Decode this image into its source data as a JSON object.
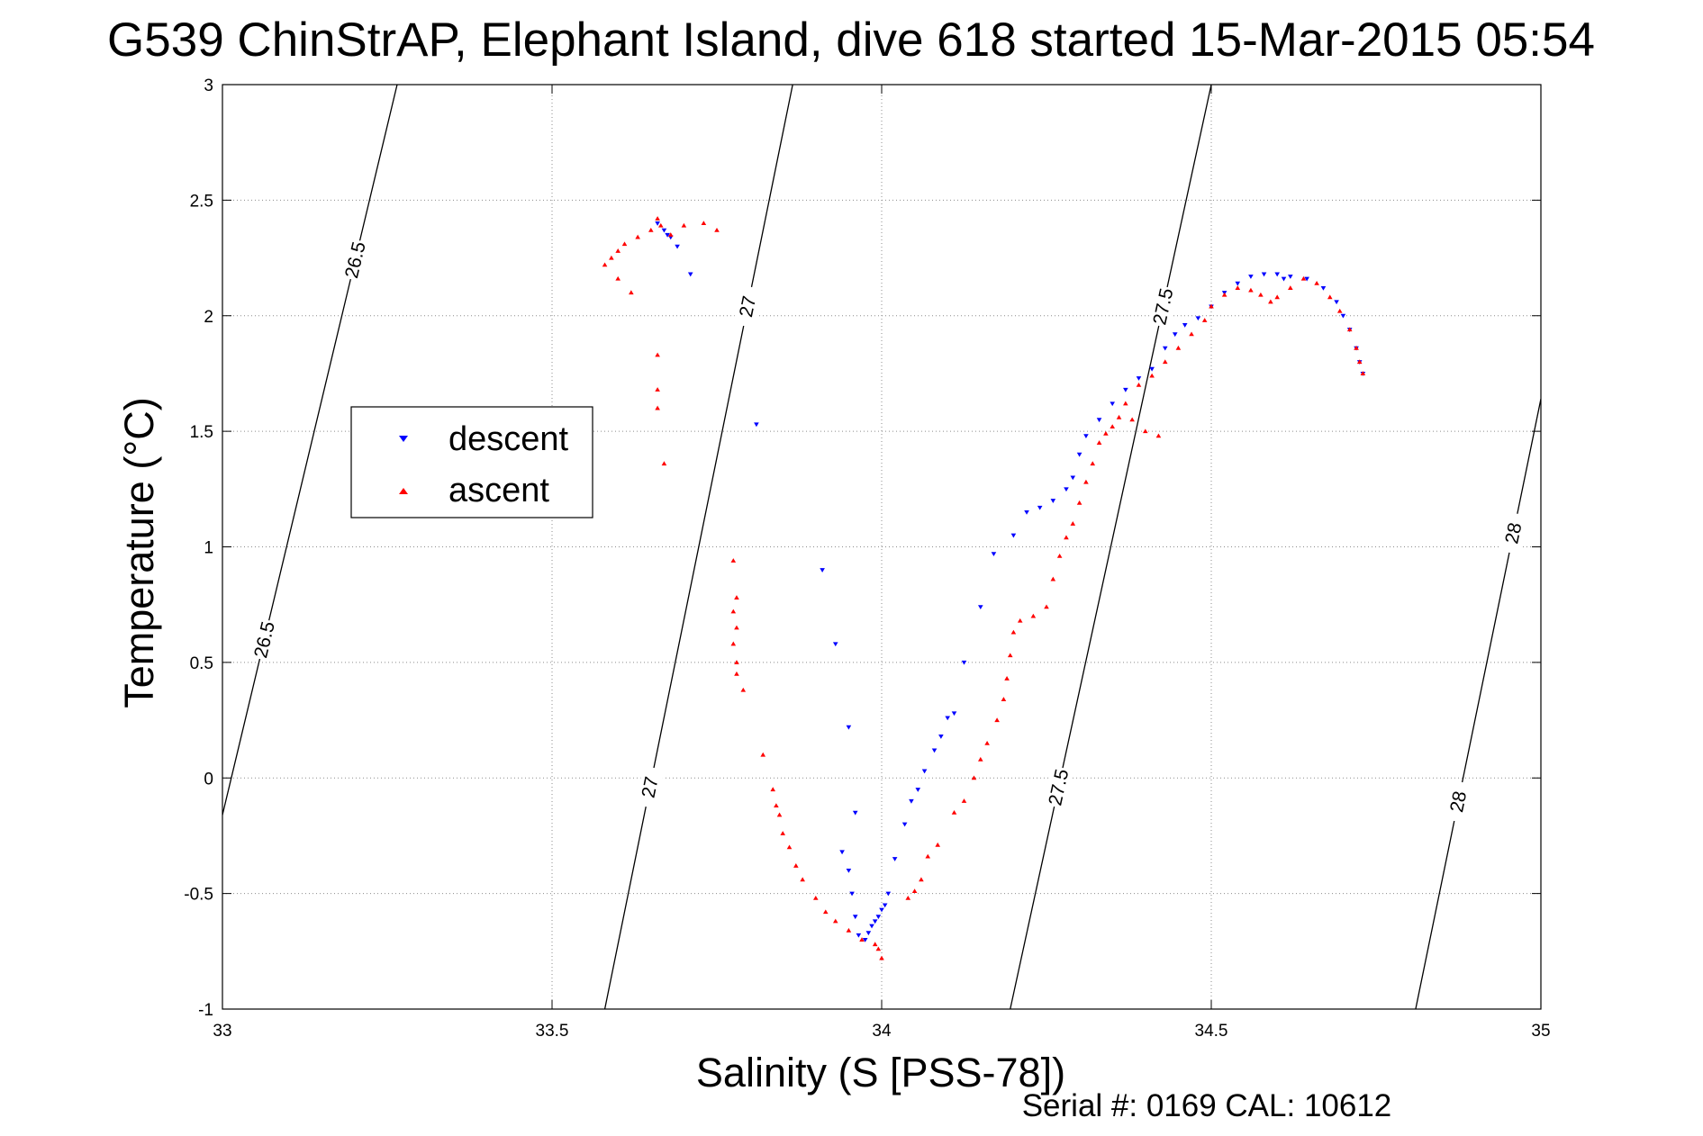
{
  "chart_data": {
    "type": "scatter",
    "title": "G539 ChinStrAP, Elephant Island, dive 618 started 15-Mar-2015 05:54",
    "xlabel": "Salinity (S [PSS-78])",
    "ylabel": "Temperature (°C)",
    "xlim": [
      33,
      35
    ],
    "ylim": [
      -1,
      3
    ],
    "xticks": [
      "33",
      "33.5",
      "34",
      "34.5",
      "35"
    ],
    "yticks": [
      "-1",
      "-0.5",
      "0",
      "0.5",
      "1",
      "1.5",
      "2",
      "2.5",
      "3"
    ],
    "grid": true,
    "legend_position": "middle-left",
    "footer": "Serial #: 0169 CAL: 10612",
    "series": [
      {
        "name": "descent",
        "color": "#0000ff",
        "marker": "triangle-down",
        "points": [
          [
            33.66,
            2.4
          ],
          [
            33.67,
            2.37
          ],
          [
            33.675,
            2.35
          ],
          [
            33.68,
            2.34
          ],
          [
            33.69,
            2.3
          ],
          [
            33.71,
            2.18
          ],
          [
            33.81,
            1.53
          ],
          [
            33.91,
            0.9
          ],
          [
            33.93,
            0.58
          ],
          [
            33.95,
            0.22
          ],
          [
            33.96,
            -0.15
          ],
          [
            33.94,
            -0.32
          ],
          [
            33.95,
            -0.4
          ],
          [
            33.955,
            -0.5
          ],
          [
            33.96,
            -0.6
          ],
          [
            33.965,
            -0.68
          ],
          [
            33.975,
            -0.7
          ],
          [
            33.98,
            -0.67
          ],
          [
            33.985,
            -0.64
          ],
          [
            33.99,
            -0.62
          ],
          [
            33.995,
            -0.6
          ],
          [
            34.0,
            -0.57
          ],
          [
            34.005,
            -0.55
          ],
          [
            34.01,
            -0.5
          ],
          [
            34.02,
            -0.35
          ],
          [
            34.035,
            -0.2
          ],
          [
            34.045,
            -0.1
          ],
          [
            34.055,
            -0.05
          ],
          [
            34.065,
            0.03
          ],
          [
            34.08,
            0.12
          ],
          [
            34.09,
            0.18
          ],
          [
            34.1,
            0.26
          ],
          [
            34.11,
            0.28
          ],
          [
            34.125,
            0.5
          ],
          [
            34.15,
            0.74
          ],
          [
            34.17,
            0.97
          ],
          [
            34.2,
            1.05
          ],
          [
            34.22,
            1.15
          ],
          [
            34.24,
            1.17
          ],
          [
            34.26,
            1.2
          ],
          [
            34.28,
            1.25
          ],
          [
            34.29,
            1.3
          ],
          [
            34.3,
            1.4
          ],
          [
            34.31,
            1.48
          ],
          [
            34.33,
            1.55
          ],
          [
            34.35,
            1.62
          ],
          [
            34.37,
            1.68
          ],
          [
            34.39,
            1.73
          ],
          [
            34.41,
            1.77
          ],
          [
            34.43,
            1.86
          ],
          [
            34.445,
            1.92
          ],
          [
            34.46,
            1.96
          ],
          [
            34.48,
            1.99
          ],
          [
            34.5,
            2.04
          ],
          [
            34.52,
            2.1
          ],
          [
            34.54,
            2.14
          ],
          [
            34.56,
            2.17
          ],
          [
            34.58,
            2.18
          ],
          [
            34.6,
            2.18
          ],
          [
            34.61,
            2.16
          ],
          [
            34.62,
            2.17
          ],
          [
            34.645,
            2.16
          ],
          [
            34.67,
            2.12
          ],
          [
            34.69,
            2.06
          ],
          [
            34.7,
            2.0
          ],
          [
            34.71,
            1.94
          ],
          [
            34.72,
            1.86
          ],
          [
            34.725,
            1.8
          ],
          [
            34.73,
            1.75
          ]
        ]
      },
      {
        "name": "ascent",
        "color": "#ff0000",
        "marker": "triangle-up",
        "points": [
          [
            33.66,
            2.42
          ],
          [
            33.665,
            2.39
          ],
          [
            33.65,
            2.37
          ],
          [
            33.63,
            2.34
          ],
          [
            33.61,
            2.31
          ],
          [
            33.6,
            2.28
          ],
          [
            33.59,
            2.25
          ],
          [
            33.58,
            2.22
          ],
          [
            33.6,
            2.16
          ],
          [
            33.62,
            2.1
          ],
          [
            33.68,
            2.35
          ],
          [
            33.7,
            2.39
          ],
          [
            33.73,
            2.4
          ],
          [
            33.75,
            2.37
          ],
          [
            33.66,
            1.83
          ],
          [
            33.66,
            1.68
          ],
          [
            33.66,
            1.6
          ],
          [
            33.67,
            1.36
          ],
          [
            33.775,
            0.94
          ],
          [
            33.78,
            0.78
          ],
          [
            33.775,
            0.72
          ],
          [
            33.78,
            0.65
          ],
          [
            33.775,
            0.58
          ],
          [
            33.78,
            0.5
          ],
          [
            33.78,
            0.45
          ],
          [
            33.79,
            0.38
          ],
          [
            33.82,
            0.1
          ],
          [
            33.835,
            -0.05
          ],
          [
            33.84,
            -0.12
          ],
          [
            33.845,
            -0.16
          ],
          [
            33.85,
            -0.24
          ],
          [
            33.86,
            -0.3
          ],
          [
            33.87,
            -0.38
          ],
          [
            33.88,
            -0.44
          ],
          [
            33.9,
            -0.52
          ],
          [
            33.915,
            -0.58
          ],
          [
            33.93,
            -0.62
          ],
          [
            33.95,
            -0.66
          ],
          [
            33.97,
            -0.7
          ],
          [
            33.99,
            -0.72
          ],
          [
            33.995,
            -0.74
          ],
          [
            34.0,
            -0.78
          ],
          [
            34.04,
            -0.52
          ],
          [
            34.05,
            -0.49
          ],
          [
            34.06,
            -0.44
          ],
          [
            34.07,
            -0.34
          ],
          [
            34.085,
            -0.29
          ],
          [
            34.11,
            -0.15
          ],
          [
            34.125,
            -0.1
          ],
          [
            34.14,
            0.0
          ],
          [
            34.15,
            0.08
          ],
          [
            34.16,
            0.15
          ],
          [
            34.175,
            0.25
          ],
          [
            34.185,
            0.34
          ],
          [
            34.19,
            0.43
          ],
          [
            34.195,
            0.53
          ],
          [
            34.2,
            0.63
          ],
          [
            34.21,
            0.68
          ],
          [
            34.23,
            0.7
          ],
          [
            34.25,
            0.74
          ],
          [
            34.26,
            0.86
          ],
          [
            34.27,
            0.96
          ],
          [
            34.28,
            1.04
          ],
          [
            34.29,
            1.1
          ],
          [
            34.3,
            1.19
          ],
          [
            34.31,
            1.28
          ],
          [
            34.32,
            1.36
          ],
          [
            34.33,
            1.45
          ],
          [
            34.34,
            1.49
          ],
          [
            34.35,
            1.52
          ],
          [
            34.36,
            1.56
          ],
          [
            34.37,
            1.62
          ],
          [
            34.39,
            1.7
          ],
          [
            34.41,
            1.74
          ],
          [
            34.43,
            1.8
          ],
          [
            34.45,
            1.86
          ],
          [
            34.47,
            1.92
          ],
          [
            34.49,
            1.98
          ],
          [
            34.5,
            2.04
          ],
          [
            34.52,
            2.09
          ],
          [
            34.54,
            2.12
          ],
          [
            34.56,
            2.11
          ],
          [
            34.575,
            2.09
          ],
          [
            34.59,
            2.06
          ],
          [
            34.6,
            2.08
          ],
          [
            34.62,
            2.12
          ],
          [
            34.64,
            2.16
          ],
          [
            34.66,
            2.14
          ],
          [
            34.68,
            2.08
          ],
          [
            34.695,
            2.02
          ],
          [
            34.71,
            1.94
          ],
          [
            34.72,
            1.86
          ],
          [
            34.725,
            1.8
          ],
          [
            34.73,
            1.75
          ],
          [
            34.4,
            1.5
          ],
          [
            34.42,
            1.48
          ],
          [
            34.38,
            1.55
          ]
        ]
      }
    ],
    "density_contours": [
      {
        "label": "26.5",
        "points": [
          [
            33.0,
            -0.16
          ],
          [
            33.265,
            3.0
          ]
        ]
      },
      {
        "label": "27",
        "points": [
          [
            33.58,
            -1.0
          ],
          [
            33.865,
            3.0
          ]
        ]
      },
      {
        "label": "27.5",
        "points": [
          [
            34.195,
            -1.0
          ],
          [
            34.5,
            3.0
          ]
        ]
      },
      {
        "label": "28",
        "points": [
          [
            34.81,
            -1.0
          ],
          [
            35.0,
            1.64
          ]
        ]
      }
    ]
  }
}
